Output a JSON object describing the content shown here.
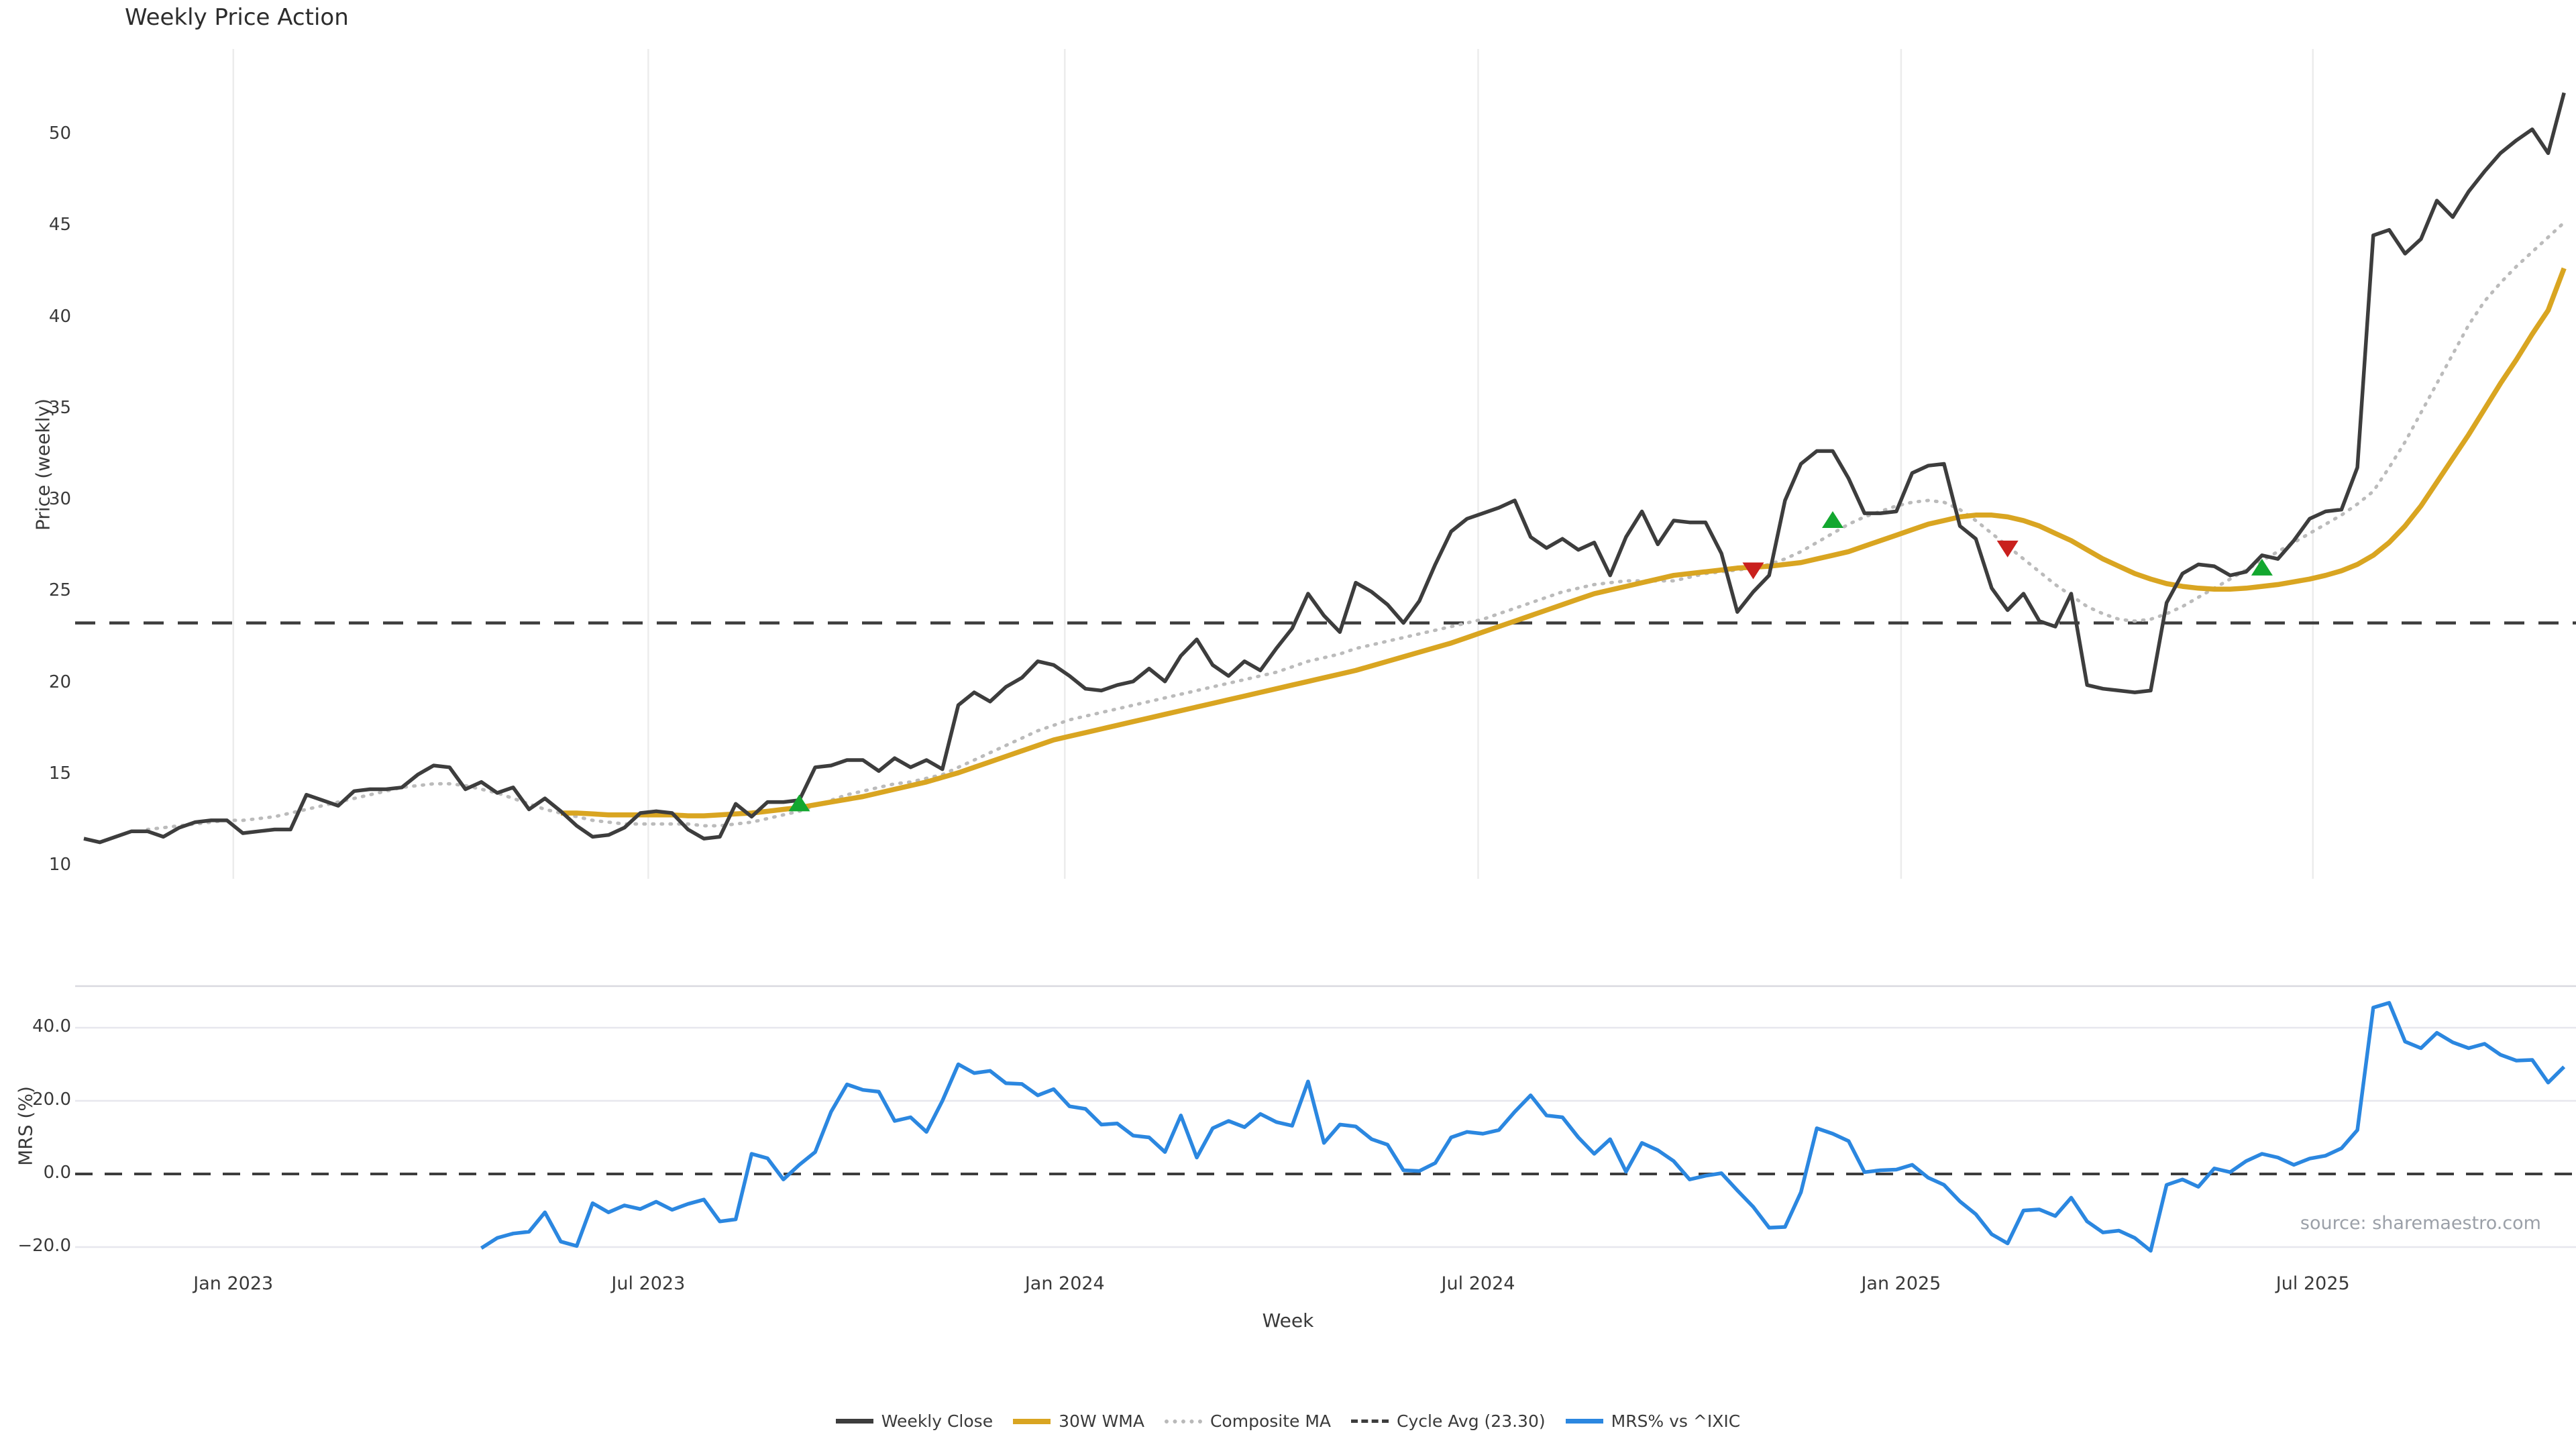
{
  "header": {
    "title": "Weekly Price Action"
  },
  "axes": {
    "price_ylabel": "Price (weekly)",
    "mrs_ylabel": "MRS (%)",
    "xlabel": "Week"
  },
  "source": {
    "text": "source: sharemaestro.com"
  },
  "legend": {
    "items": [
      {
        "label": "Weekly Close",
        "style": "solid-dark",
        "color": "#3d3d3d"
      },
      {
        "label": "30W WMA",
        "style": "solid-gold",
        "color": "#d9a521"
      },
      {
        "label": "Composite MA",
        "style": "dotted",
        "color": "#b9b9b9"
      },
      {
        "label": "Cycle Avg (23.30)",
        "style": "dashed",
        "color": "#3d3d3d"
      },
      {
        "label": "MRS% vs ^IXIC",
        "style": "solid-blue",
        "color": "#2b87e0"
      }
    ]
  },
  "colors": {
    "close": "#3d3d3d",
    "wma": "#d9a521",
    "composite": "#bbbbbb",
    "cycle": "#3d3d3d",
    "mrs": "#2b87e0",
    "buy": "#13a72f",
    "sell": "#c9201d",
    "grid_v": "#ececec",
    "grid_h": "#e7e7ee",
    "spine": "#d9d9e0",
    "zero": "#3d3d3d"
  },
  "chart_data": [
    {
      "type": "line",
      "panel": "price",
      "title": "Weekly Price Action",
      "xlabel": "Week",
      "ylabel": "Price (weekly)",
      "ylim": [
        9.3,
        54.7
      ],
      "grid": "vertical-only",
      "legend_position": "bottom-center",
      "yticks": [
        {
          "value": 10,
          "label": "10"
        },
        {
          "value": 15,
          "label": "15"
        },
        {
          "value": 20,
          "label": "20"
        },
        {
          "value": 25,
          "label": "25"
        },
        {
          "value": 30,
          "label": "30"
        },
        {
          "value": 35,
          "label": "35"
        },
        {
          "value": 40,
          "label": "40"
        },
        {
          "value": 45,
          "label": "45"
        },
        {
          "value": 50,
          "label": "50"
        }
      ],
      "xticks": [
        {
          "index": 9.4,
          "label": "Jan 2023"
        },
        {
          "index": 35.5,
          "label": "Jul 2023"
        },
        {
          "index": 61.7,
          "label": "Jan 2024"
        },
        {
          "index": 87.7,
          "label": "Jul 2024"
        },
        {
          "index": 114.3,
          "label": "Jan 2025"
        },
        {
          "index": 140.2,
          "label": "Jul 2025"
        }
      ],
      "cycle_avg": 23.3,
      "series": [
        {
          "name": "Weekly Close",
          "style": "solid",
          "color": "#3d3d3d",
          "start_index": 0,
          "values": [
            11.5,
            11.3,
            11.6,
            11.9,
            11.9,
            11.6,
            12.1,
            12.4,
            12.5,
            12.5,
            11.8,
            11.9,
            12.0,
            12.0,
            13.9,
            13.6,
            13.3,
            14.1,
            14.2,
            14.2,
            14.3,
            15.0,
            15.5,
            15.4,
            14.2,
            14.6,
            14.0,
            14.3,
            13.1,
            13.7,
            13.0,
            12.2,
            11.6,
            11.7,
            12.1,
            12.9,
            13.0,
            12.9,
            12.0,
            11.5,
            11.6,
            13.4,
            12.7,
            13.5,
            13.5,
            13.6,
            15.4,
            15.5,
            15.8,
            15.8,
            15.2,
            15.9,
            15.4,
            15.8,
            15.3,
            18.8,
            19.5,
            19.0,
            19.8,
            20.3,
            21.2,
            21.0,
            20.4,
            19.7,
            19.6,
            19.9,
            20.1,
            20.8,
            20.1,
            21.5,
            22.4,
            21.0,
            20.4,
            21.2,
            20.7,
            21.9,
            23.0,
            24.9,
            23.7,
            22.8,
            25.5,
            25.0,
            24.3,
            23.3,
            24.5,
            26.5,
            28.3,
            29.0,
            29.3,
            29.6,
            30.0,
            28.0,
            27.4,
            27.9,
            27.3,
            27.7,
            25.9,
            28.0,
            29.4,
            27.6,
            28.9,
            28.8,
            28.8,
            27.1,
            23.9,
            25.0,
            25.9,
            30.0,
            32.0,
            32.7,
            32.7,
            31.2,
            29.3,
            29.3,
            29.4,
            31.5,
            31.9,
            32.0,
            28.6,
            27.9,
            25.2,
            24.0,
            24.9,
            23.4,
            23.1,
            24.9,
            19.9,
            19.7,
            19.6,
            19.5,
            19.6,
            24.4,
            26.0,
            26.5,
            26.4,
            25.9,
            26.1,
            27.0,
            26.8,
            27.8,
            29.0,
            29.4,
            29.5,
            31.8,
            44.5,
            44.8,
            43.5,
            44.3,
            46.4,
            45.5,
            46.9,
            48.0,
            49.0,
            49.7,
            50.3,
            49.0,
            52.3
          ]
        },
        {
          "name": "30W WMA",
          "style": "solid",
          "color": "#d9a521",
          "start_index": 30,
          "values": [
            12.9,
            12.9,
            12.85,
            12.8,
            12.8,
            12.8,
            12.8,
            12.8,
            12.75,
            12.75,
            12.8,
            12.85,
            12.9,
            13.0,
            13.1,
            13.2,
            13.35,
            13.5,
            13.65,
            13.8,
            14.0,
            14.2,
            14.4,
            14.6,
            14.85,
            15.1,
            15.4,
            15.7,
            16.0,
            16.3,
            16.6,
            16.9,
            17.1,
            17.3,
            17.5,
            17.7,
            17.9,
            18.1,
            18.3,
            18.5,
            18.7,
            18.9,
            19.1,
            19.3,
            19.5,
            19.7,
            19.9,
            20.1,
            20.3,
            20.5,
            20.7,
            20.95,
            21.2,
            21.45,
            21.7,
            21.95,
            22.2,
            22.5,
            22.8,
            23.1,
            23.4,
            23.7,
            24.0,
            24.3,
            24.6,
            24.9,
            25.1,
            25.3,
            25.5,
            25.7,
            25.9,
            26.0,
            26.1,
            26.2,
            26.3,
            26.35,
            26.4,
            26.5,
            26.6,
            26.8,
            27.0,
            27.2,
            27.5,
            27.8,
            28.1,
            28.4,
            28.7,
            28.9,
            29.1,
            29.2,
            29.2,
            29.1,
            28.9,
            28.6,
            28.2,
            27.8,
            27.3,
            26.8,
            26.4,
            26.0,
            25.7,
            25.45,
            25.3,
            25.2,
            25.15,
            25.15,
            25.2,
            25.3,
            25.4,
            25.55,
            25.7,
            25.9,
            26.15,
            26.5,
            27.0,
            27.7,
            28.6,
            29.7,
            31.0,
            32.3,
            33.6,
            35.0,
            36.4,
            37.7,
            39.1,
            40.4,
            42.7
          ]
        },
        {
          "name": "Composite MA",
          "style": "dotted",
          "color": "#bbbbbb",
          "start_index": 4,
          "values": [
            12.0,
            12.1,
            12.2,
            12.3,
            12.4,
            12.5,
            12.5,
            12.6,
            12.7,
            12.9,
            13.1,
            13.3,
            13.5,
            13.7,
            13.9,
            14.1,
            14.3,
            14.4,
            14.5,
            14.5,
            14.4,
            14.2,
            14.0,
            13.7,
            13.4,
            13.1,
            12.9,
            12.7,
            12.5,
            12.4,
            12.3,
            12.3,
            12.3,
            12.3,
            12.3,
            12.2,
            12.2,
            12.3,
            12.4,
            12.6,
            12.8,
            13.0,
            13.3,
            13.6,
            13.9,
            14.1,
            14.3,
            14.5,
            14.6,
            14.8,
            15.0,
            15.4,
            15.8,
            16.2,
            16.6,
            17.0,
            17.4,
            17.7,
            18.0,
            18.2,
            18.4,
            18.6,
            18.8,
            19.0,
            19.2,
            19.4,
            19.6,
            19.8,
            20.0,
            20.2,
            20.4,
            20.6,
            20.9,
            21.2,
            21.4,
            21.6,
            21.9,
            22.1,
            22.3,
            22.5,
            22.7,
            22.9,
            23.1,
            23.3,
            23.5,
            23.8,
            24.1,
            24.4,
            24.7,
            25.0,
            25.2,
            25.4,
            25.5,
            25.6,
            25.6,
            25.6,
            25.6,
            25.8,
            26.0,
            26.1,
            26.2,
            26.3,
            26.5,
            26.8,
            27.2,
            27.7,
            28.2,
            28.7,
            29.1,
            29.4,
            29.7,
            29.9,
            30.0,
            29.9,
            29.5,
            28.9,
            28.2,
            27.5,
            26.8,
            26.1,
            25.4,
            24.8,
            24.2,
            23.8,
            23.5,
            23.4,
            23.5,
            23.8,
            24.2,
            24.7,
            25.2,
            25.7,
            26.2,
            26.7,
            27.2,
            27.7,
            28.2,
            28.7,
            29.2,
            29.8,
            30.5,
            31.8,
            33.2,
            34.8,
            36.4,
            38.0,
            39.6,
            40.9,
            41.9,
            42.8,
            43.6,
            44.4,
            45.2
          ]
        },
        {
          "name": "Cycle Avg (23.30)",
          "style": "dashed",
          "color": "#3d3d3d",
          "value": 23.3
        }
      ],
      "markers": {
        "buy": {
          "color": "#13a72f",
          "shape": "triangle-up",
          "points": [
            {
              "index": 45,
              "price": 13.4
            },
            {
              "index": 110,
              "price": 28.9
            },
            {
              "index": 137,
              "price": 26.3
            }
          ]
        },
        "sell": {
          "color": "#c9201d",
          "shape": "triangle-down",
          "points": [
            {
              "index": 105,
              "price": 26.2
            },
            {
              "index": 121,
              "price": 27.4
            }
          ]
        }
      }
    },
    {
      "type": "line",
      "panel": "mrs",
      "ylabel": "MRS (%)",
      "ylim": [
        -25,
        51.5
      ],
      "grid": "horizontal-only",
      "zero_line": 0,
      "yticks": [
        {
          "value": 40,
          "label": "40.0"
        },
        {
          "value": 20,
          "label": "20.0"
        },
        {
          "value": 0,
          "label": "0.0"
        },
        {
          "value": -20,
          "label": "−20.0"
        }
      ],
      "series": [
        {
          "name": "MRS% vs ^IXIC",
          "style": "solid",
          "color": "#2b87e0",
          "start_index": 25,
          "values": [
            -20.3,
            -17.5,
            -16.3,
            -15.8,
            -10.5,
            -18.5,
            -19.7,
            -8.0,
            -10.5,
            -8.6,
            -9.6,
            -7.6,
            -9.8,
            -8.2,
            -7.0,
            -13.0,
            -12.4,
            5.5,
            4.3,
            -1.5,
            2.5,
            6.0,
            17.0,
            24.5,
            23.0,
            22.5,
            14.5,
            15.5,
            11.5,
            20.0,
            30.0,
            27.6,
            28.2,
            24.8,
            24.6,
            21.5,
            23.2,
            18.5,
            17.8,
            13.5,
            13.8,
            10.5,
            10.0,
            6.0,
            16.0,
            4.5,
            12.5,
            14.5,
            12.8,
            16.4,
            14.2,
            13.2,
            25.3,
            8.5,
            13.5,
            13.0,
            9.5,
            8.0,
            1.0,
            0.8,
            3.0,
            10.0,
            11.5,
            11.0,
            12.0,
            17.0,
            21.5,
            16.0,
            15.5,
            10.0,
            5.5,
            9.5,
            0.6,
            8.5,
            6.5,
            3.5,
            -1.5,
            -0.5,
            0.2,
            -4.5,
            -9.0,
            -14.7,
            -14.5,
            -5.0,
            12.5,
            11.0,
            9.0,
            0.5,
            1.0,
            1.2,
            2.5,
            -1.0,
            -3.0,
            -7.5,
            -11.0,
            -16.5,
            -19.0,
            -10.0,
            -9.7,
            -11.5,
            -6.5,
            -13.0,
            -16.0,
            -15.5,
            -17.5,
            -21.0,
            -3.0,
            -1.5,
            -3.5,
            1.5,
            0.5,
            3.5,
            5.5,
            4.5,
            2.5,
            4.2,
            5.0,
            7.0,
            12.0,
            45.5,
            46.8,
            36.2,
            34.4,
            38.6,
            36.0,
            34.4,
            35.6,
            32.6,
            31.0,
            31.2,
            25.0,
            29.3
          ]
        }
      ]
    }
  ]
}
